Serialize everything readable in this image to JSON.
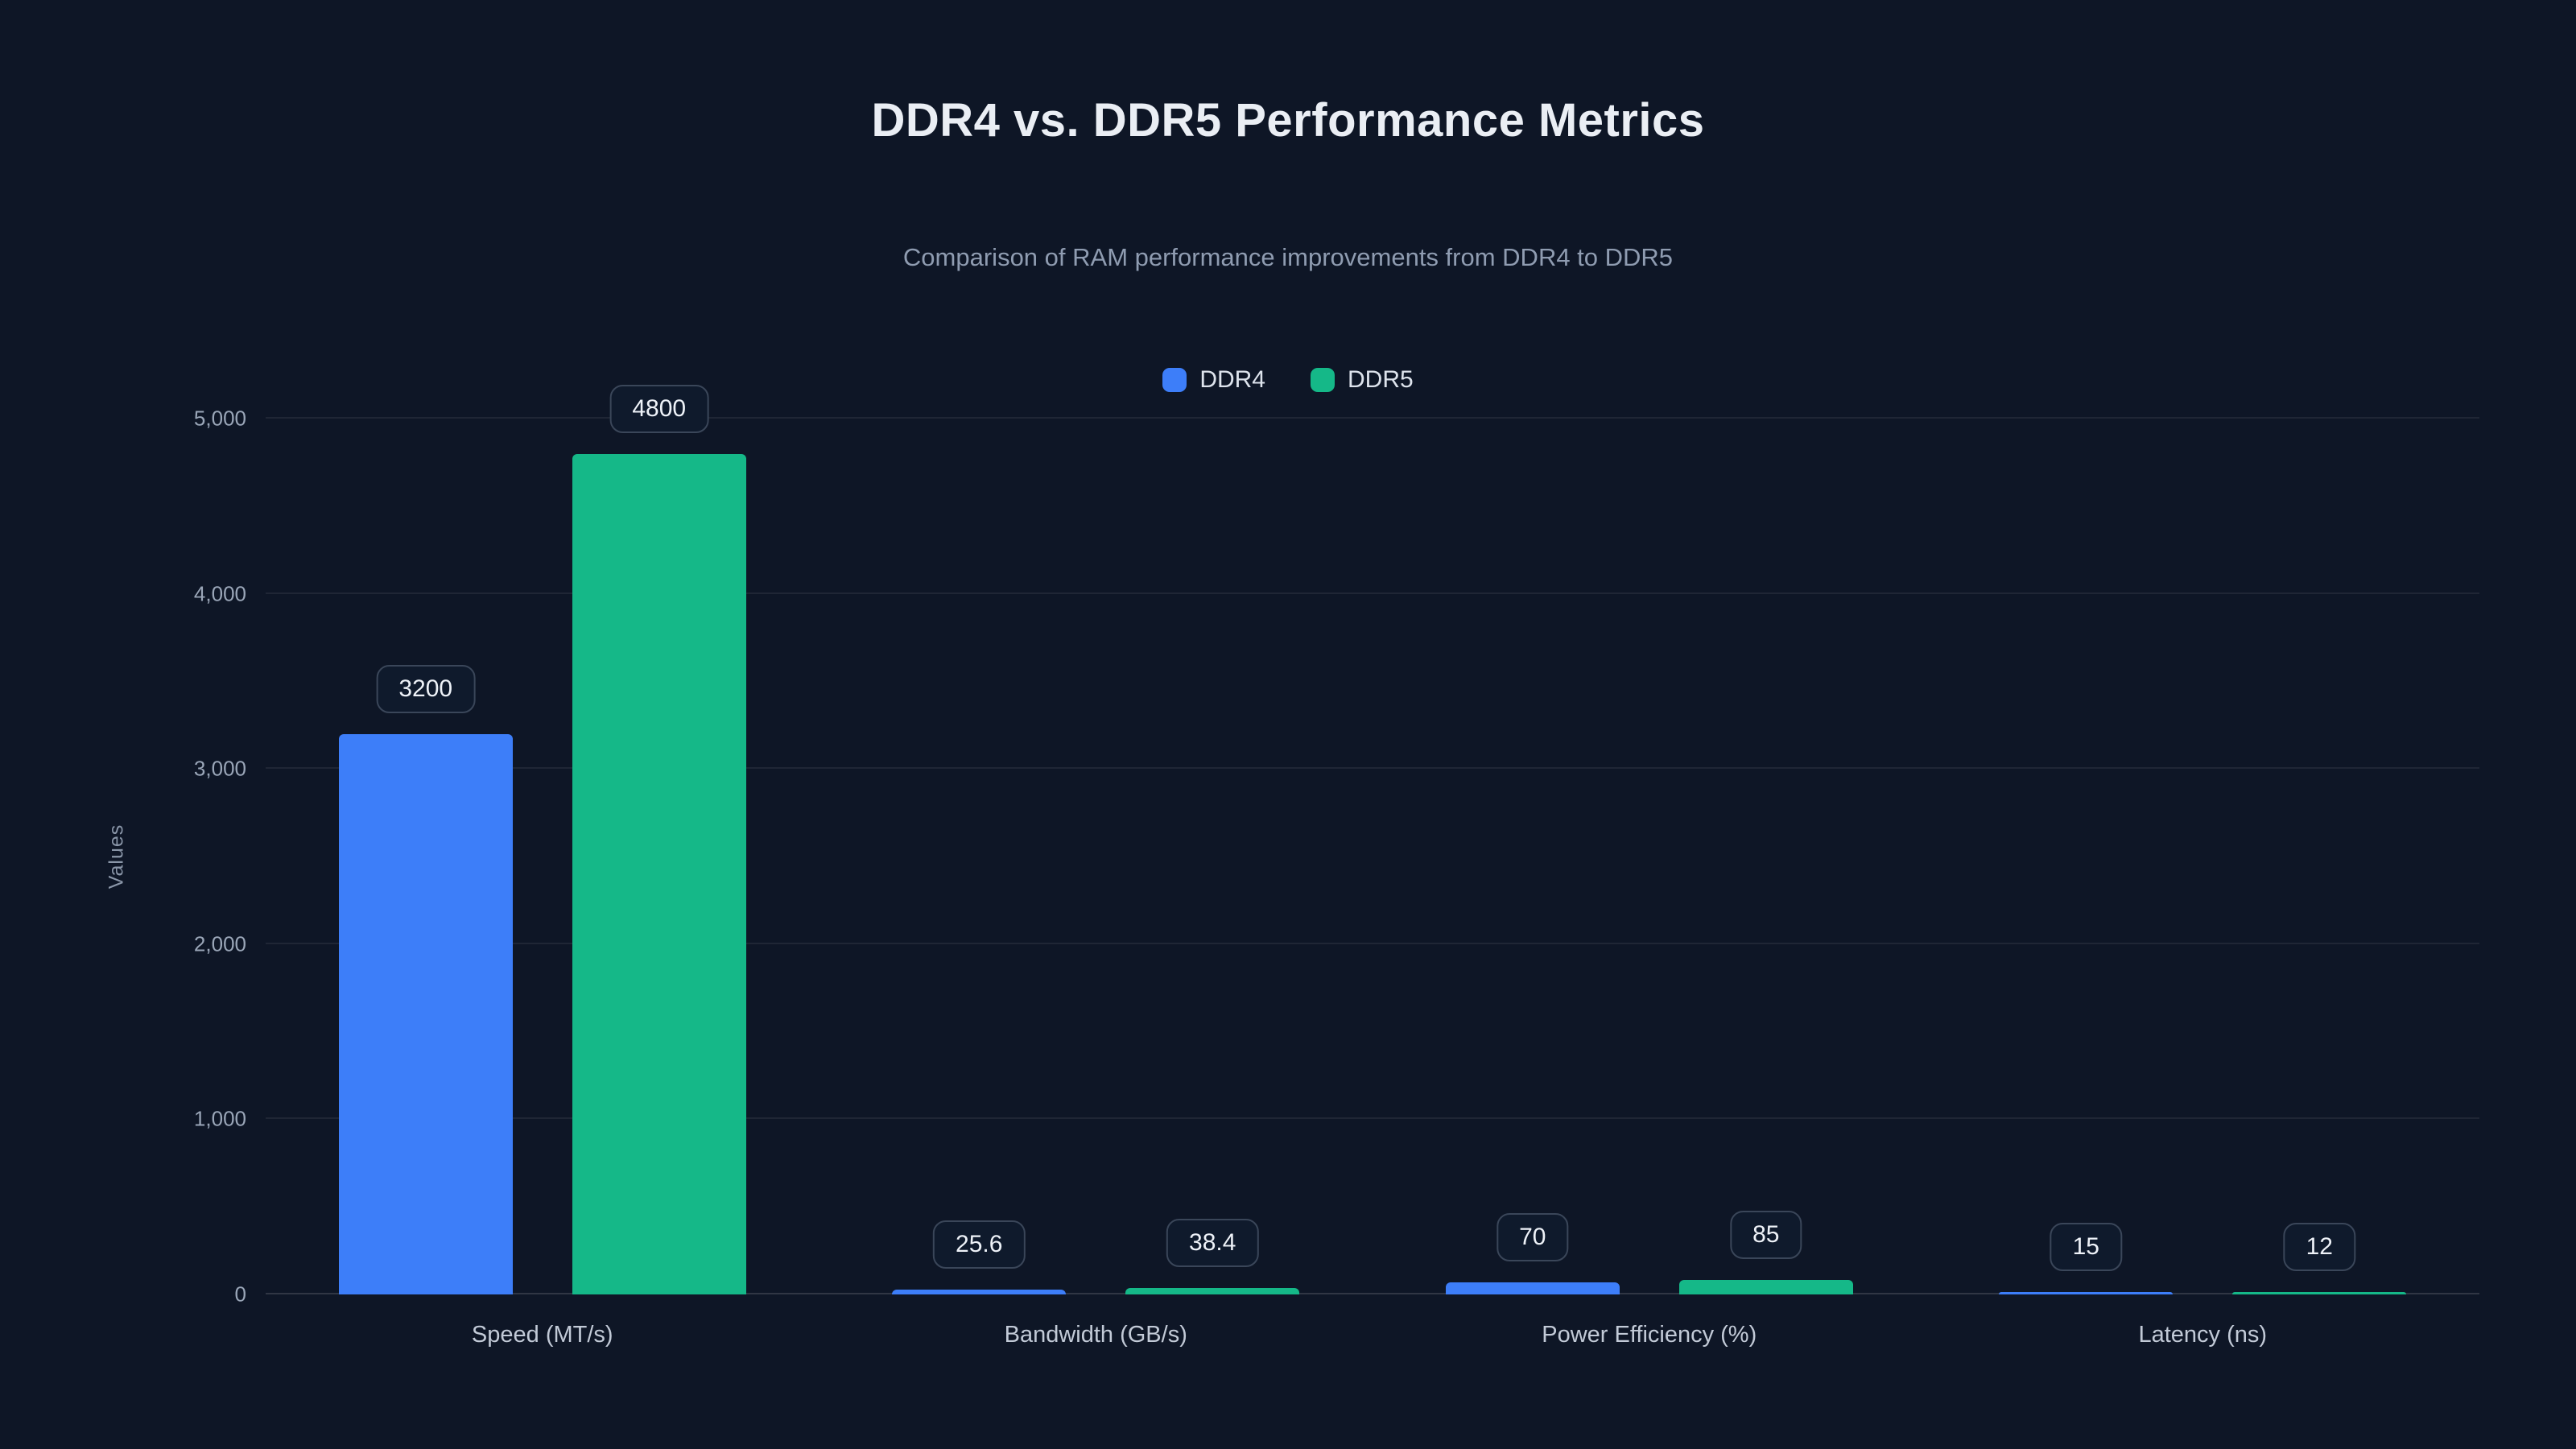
{
  "page": {
    "title": "DDR4 vs. DDR5 Performance Metrics",
    "subtitle": "Comparison of RAM performance improvements from DDR4 to DDR5"
  },
  "chart_data": {
    "type": "bar",
    "title": "DDR4 vs. DDR5 Performance Metrics",
    "subtitle": "Comparison of RAM performance improvements from DDR4 to DDR5",
    "categories": [
      "Speed (MT/s)",
      "Bandwidth (GB/s)",
      "Power Efficiency (%)",
      "Latency (ns)"
    ],
    "series": [
      {
        "name": "DDR4",
        "color": "#3d7ef9",
        "values": [
          3200,
          25.6,
          70,
          15
        ],
        "data_labels": [
          "3200",
          "25.6",
          "70",
          "15"
        ]
      },
      {
        "name": "DDR5",
        "color": "#15b888",
        "values": [
          4800,
          38.4,
          85,
          12
        ],
        "data_labels": [
          "4800",
          "38.4",
          "85",
          "12"
        ]
      }
    ],
    "xlabel": "",
    "ylabel": "Values",
    "ylim": [
      0,
      5000
    ],
    "yticks": [
      "0",
      "1,000",
      "2,000",
      "3,000",
      "4,000",
      "5,000"
    ],
    "grid": true,
    "legend_position": "top-center",
    "colors": {
      "background": "#0e1626",
      "title_text": "#eaeef4",
      "subtitle_text": "#8f9cb1",
      "axis_text": "#9aa6b8",
      "gridline": "rgba(255,255,255,0.07)",
      "ddr4_blue": "#3d7ef9",
      "ddr5_green": "#15b888"
    }
  }
}
